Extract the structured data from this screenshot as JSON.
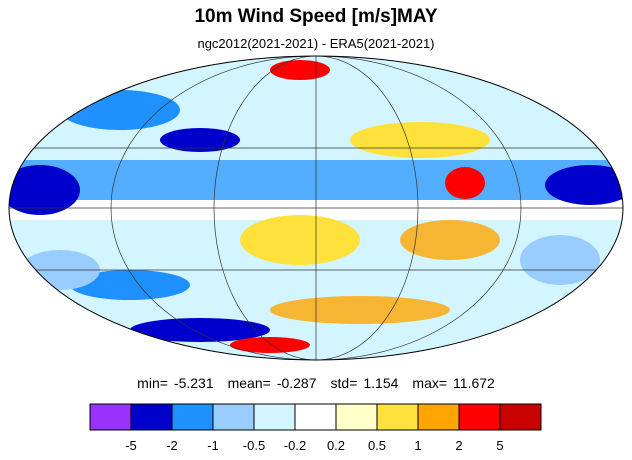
{
  "title": "10m Wind Speed [m/s]MAY",
  "subtitle": "ngc2012(2021-2021) - ERA5(2021-2021)",
  "stats": [
    {
      "label": "min=",
      "value": -5.231
    },
    {
      "label": "mean=",
      "value": -0.287
    },
    {
      "label": "std=",
      "value": 1.154
    },
    {
      "label": "max=",
      "value": 11.672
    }
  ],
  "colorbar": {
    "colors": [
      "#9932ff",
      "#0000cd",
      "#1e90ff",
      "#99ccff",
      "#d2f5ff",
      "#ffffff",
      "#ffffc8",
      "#ffe13c",
      "#ffa500",
      "#ff0000",
      "#c80000"
    ],
    "ticks": [
      -5,
      -2,
      -1,
      -0.5,
      -0.2,
      0.2,
      0.5,
      1,
      2,
      5
    ]
  }
}
